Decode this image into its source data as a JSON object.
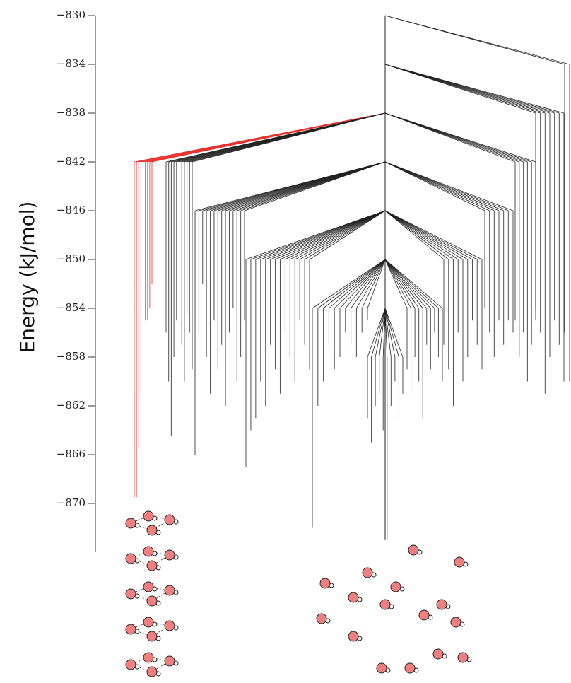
{
  "chart_data": {
    "type": "disconnectivity",
    "y_label": "Energy (kJ/mol)",
    "ylim": [
      -874,
      -830
    ],
    "yticks": [
      {
        "value": -830,
        "label": "−830"
      },
      {
        "value": -834,
        "label": "−834"
      },
      {
        "value": -838,
        "label": "−838"
      },
      {
        "value": -842,
        "label": "−842"
      },
      {
        "value": -846,
        "label": "−846"
      },
      {
        "value": -850,
        "label": "−850"
      },
      {
        "value": -854,
        "label": "−854"
      },
      {
        "value": -858,
        "label": "−858"
      },
      {
        "value": -862,
        "label": "−862"
      },
      {
        "value": -866,
        "label": "−866"
      },
      {
        "value": -870,
        "label": "−870"
      }
    ],
    "trunk": [
      -830,
      -873
    ],
    "basins": [
      {
        "split": -838,
        "bundle": -842,
        "color": "#e8312f",
        "leaves": [
          -869.5,
          -869.5,
          -865.5,
          -861,
          -858,
          -855,
          -855,
          -854,
          -852
        ]
      },
      {
        "split": -838,
        "bundle": -842,
        "color": "#222222",
        "leaves": [
          -856,
          -860,
          -864.5,
          -858,
          -855,
          -854,
          -857,
          -860,
          -854.5,
          -856,
          -859
        ]
      },
      {
        "split": -842,
        "bundle": -846,
        "color": "#222222",
        "leaves": [
          -866,
          -856,
          -852,
          -858,
          -861,
          -855,
          -859,
          -857,
          -862,
          -856,
          -854,
          -860,
          -858,
          -855
        ]
      },
      {
        "split": -846,
        "bundle": -850,
        "color": "#222222",
        "leaves": [
          -867,
          -864,
          -863,
          -860,
          -862,
          -857,
          -859,
          -861,
          -856,
          -858,
          -860,
          -855,
          -857,
          -859
        ]
      },
      {
        "split": -850,
        "bundle": -854,
        "color": "#222222",
        "leaves": [
          -872,
          -862,
          -860,
          -857,
          -859,
          -858,
          -856,
          -857,
          -858,
          -856,
          -855
        ]
      },
      {
        "split": -854,
        "bundle": -858,
        "color": "#222222",
        "leaves": [
          -863,
          -865,
          -862,
          -861,
          -864,
          -873,
          -862,
          -860,
          -863,
          -861
        ]
      },
      {
        "split": -850,
        "bundle": -854,
        "color": "#222222",
        "leaves": [
          -859,
          -861,
          -858,
          -860,
          -863,
          -857,
          -859,
          -856,
          -858,
          -860
        ]
      },
      {
        "split": -846,
        "bundle": -850,
        "color": "#222222",
        "leaves": [
          -857,
          -859,
          -862,
          -856,
          -860,
          -858,
          -855,
          -857,
          -859
        ]
      },
      {
        "split": -842,
        "bundle": -846,
        "color": "#222222",
        "leaves": [
          -854,
          -856,
          -858,
          -855,
          -857,
          -855,
          -856
        ]
      },
      {
        "split": -838,
        "bundle": -842,
        "color": "#222222",
        "leaves": [
          -855,
          -858,
          -856,
          -860,
          -857,
          -855
        ]
      },
      {
        "split": -834,
        "bundle": -838,
        "color": "#222222",
        "leaves": [
          -854,
          -856,
          -861,
          -858,
          -855,
          -857,
          -860
        ]
      },
      {
        "split": -830,
        "bundle": -834,
        "color": "#222222",
        "leaves": [
          -856,
          -860
        ]
      }
    ]
  }
}
